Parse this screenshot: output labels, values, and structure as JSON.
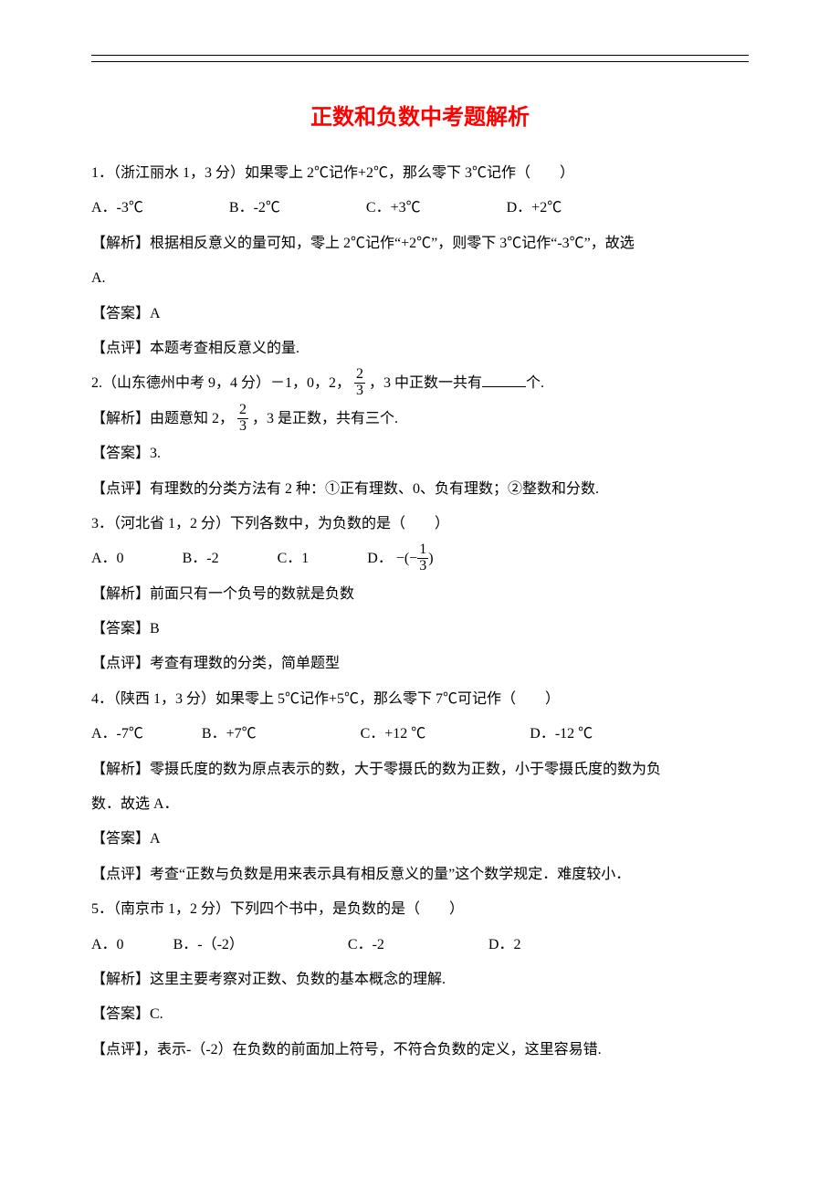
{
  "colors": {
    "title": "#ff0000",
    "text": "#000000",
    "background": "#ffffff"
  },
  "typography": {
    "title_fontsize": 24,
    "body_fontsize": 16,
    "line_height": 2.4,
    "title_font": "SimHei",
    "body_font": "SimSun"
  },
  "title": "正数和负数中考题解析",
  "q1": {
    "stem": "1．（浙江丽水 1，3 分）如果零上 2℃记作+2℃，那么零下 3℃记作（　　）",
    "opts": {
      "A": "A．-3℃",
      "B": "B．-2℃",
      "C": "C．+3℃",
      "D": "D．+2℃"
    },
    "analysis": "【解析】根据相反意义的量可知，零上 2℃记作“+2℃”，则零下 3℃记作“-3℃”，故选",
    "analysis2": "A.",
    "answer": "【答案】A",
    "review": "【点评】本题考查相反意义的量."
  },
  "q2": {
    "stem_pre": "2.（山东德州中考 9，4 分）－1，0，2，",
    "stem_post": "，3 中正数一共有",
    "stem_tail": "个.",
    "frac": {
      "num": "2",
      "den": "3"
    },
    "analysis_pre": "【解析】由题意知 2，",
    "analysis_post": "，3 是正数，共有三个.",
    "answer": "【答案】3.",
    "review": "【点评】有理数的分类方法有 2 种：①正有理数、0、负有理数；②整数和分数."
  },
  "q3": {
    "stem": "3．（河北省 1，2 分）下列各数中，为负数的是（　　）",
    "opts": {
      "A": "A．0",
      "B": "B．-2",
      "C": "C．1",
      "D_pre": "D．",
      "D_outer": "−(−",
      "D_close": ")"
    },
    "frac": {
      "num": "1",
      "den": "3"
    },
    "analysis": "【解析】前面只有一个负号的数就是负数",
    "answer": "【答案】B",
    "review": "【点评】考查有理数的分类，简单题型"
  },
  "q4": {
    "stem": "4．（陕西 1，3 分）如果零上 5℃记作+5℃，那么零下 7℃可记作（　　）",
    "opts": {
      "A": "A．-7℃",
      "B": "B．+7℃",
      "C": "C．+12 ℃",
      "D": "D．-12 ℃"
    },
    "analysis": "【解析】零摄氏度的数为原点表示的数，大于零摄氏的数为正数，小于零摄氏度的数为负",
    "analysis2": "数．故选 A．",
    "answer": "【答案】A",
    "review": "【点评】考查“正数与负数是用来表示具有相反意义的量”这个数学规定．难度较小．"
  },
  "q5": {
    "stem": "5．（南京市 1，2 分）下列四个书中，是负数的是（　　）",
    "opts": {
      "A": "A．0",
      "B": "B．-（-2）",
      "C": "C．-2",
      "D": "D．2"
    },
    "analysis": "【解析】这里主要考察对正数、负数的基本概念的理解.",
    "answer": "【答案】C.",
    "review": "【点评】，表示-（-2）在负数的前面加上符号，不符合负数的定义，这里容易错."
  }
}
